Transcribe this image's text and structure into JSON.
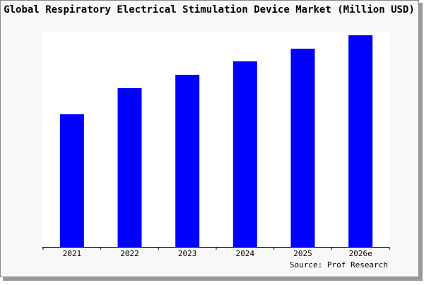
{
  "chart_data": {
    "type": "bar",
    "title": "Global Respiratory Electrical Stimulation Device Market (Million USD)",
    "categories": [
      "2021",
      "2022",
      "2023",
      "2024",
      "2025",
      "2026e"
    ],
    "values": [
      188,
      225,
      244,
      263,
      281,
      300
    ],
    "color": "#0000ff",
    "ylim": [
      0,
      300
    ],
    "source": "Source: Prof Research"
  }
}
